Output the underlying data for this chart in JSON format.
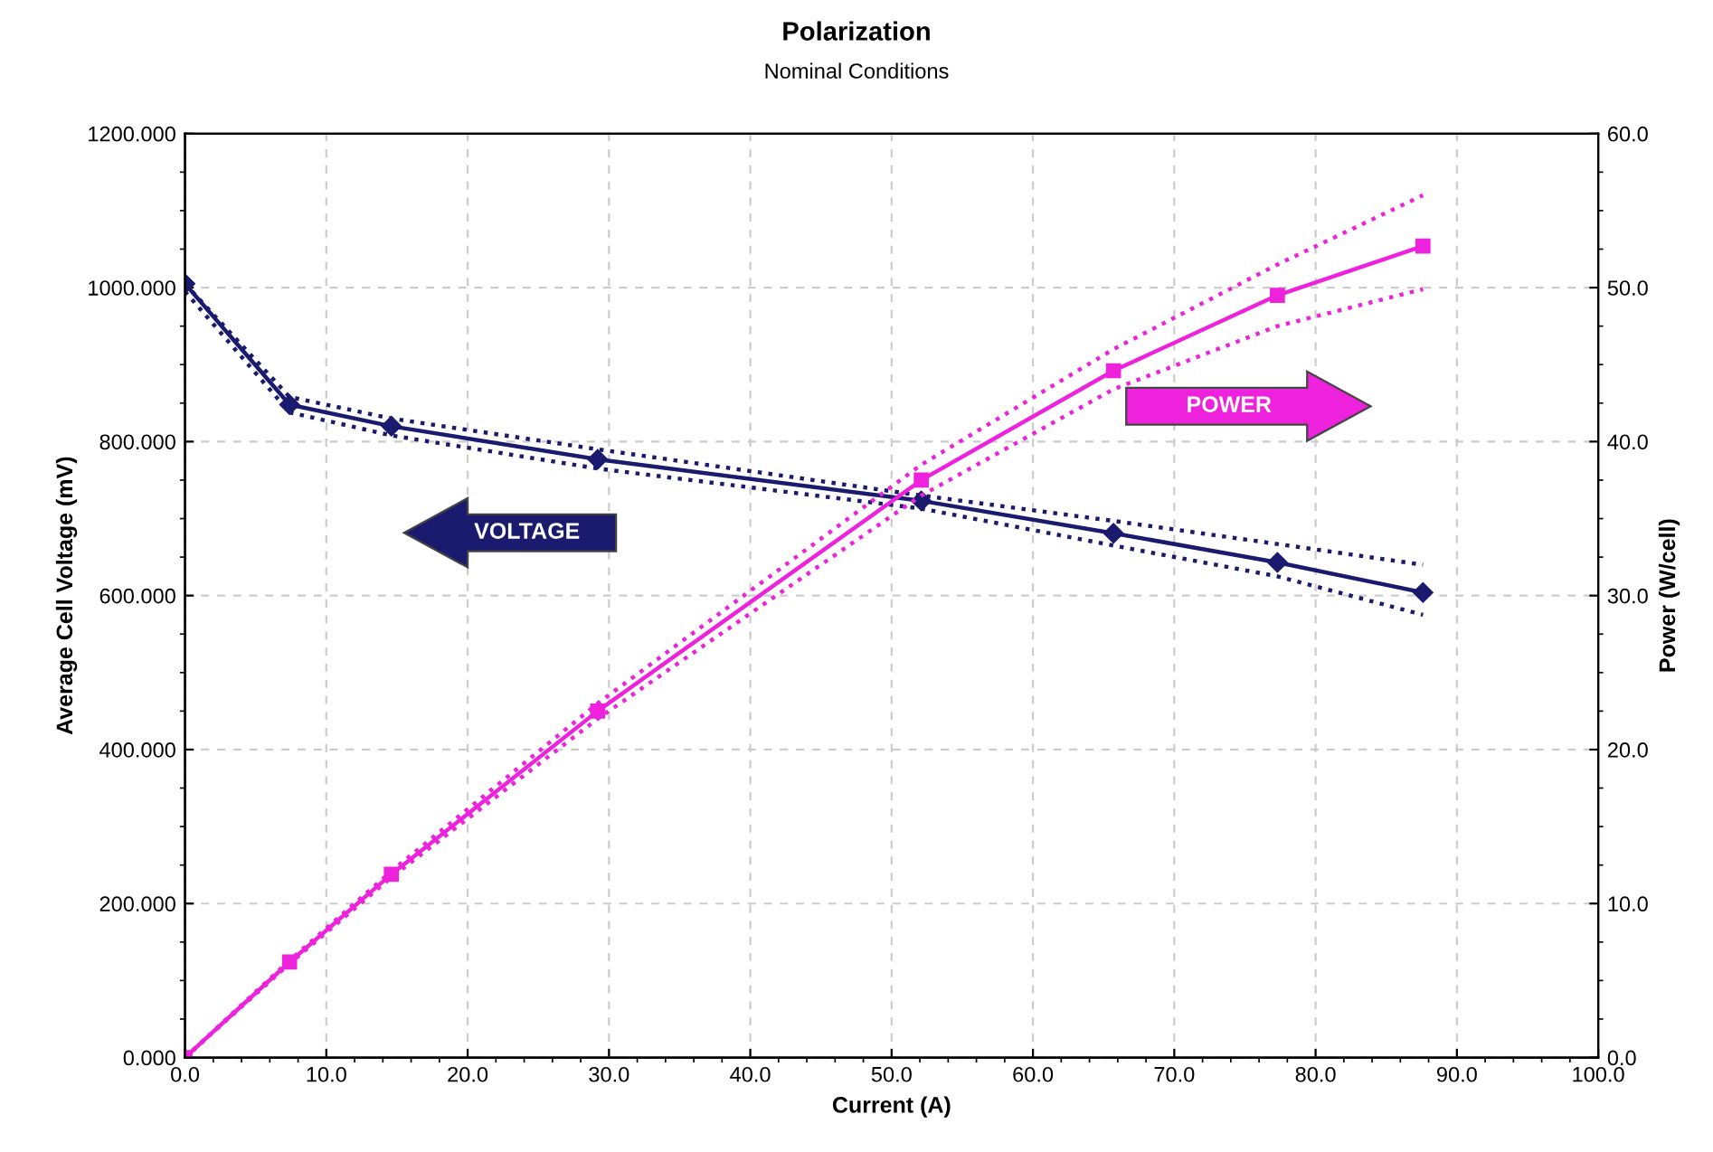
{
  "chart_data": {
    "type": "line",
    "title": "Polarization",
    "subtitle": "Nominal Conditions",
    "xlabel": "Current (A)",
    "ylabel": "Average Cell Voltage (mV)",
    "y2label": "Power (W/cell)",
    "xlim": [
      0,
      100
    ],
    "xticks": [
      {
        "value": 0,
        "label": "0.0"
      },
      {
        "value": 10,
        "label": "10.0"
      },
      {
        "value": 20,
        "label": "20.0"
      },
      {
        "value": 30,
        "label": "30.0"
      },
      {
        "value": 40,
        "label": "40.0"
      },
      {
        "value": 50,
        "label": "50.0"
      },
      {
        "value": 60,
        "label": "60.0"
      },
      {
        "value": 70,
        "label": "70.0"
      },
      {
        "value": 80,
        "label": "80.0"
      },
      {
        "value": 90,
        "label": "90.0"
      },
      {
        "value": 100,
        "label": "100.0"
      }
    ],
    "ylim": [
      0,
      1200
    ],
    "yticks": [
      {
        "value": 0,
        "label": "0.000"
      },
      {
        "value": 200,
        "label": "200.000"
      },
      {
        "value": 400,
        "label": "400.000"
      },
      {
        "value": 600,
        "label": "600.000"
      },
      {
        "value": 800,
        "label": "800.000"
      },
      {
        "value": 1000,
        "label": "1000.000"
      },
      {
        "value": 1200,
        "label": "1200.000"
      }
    ],
    "y2lim": [
      0,
      60
    ],
    "y2ticks": [
      {
        "value": 0,
        "label": "0.0"
      },
      {
        "value": 10,
        "label": "10.0"
      },
      {
        "value": 20,
        "label": "20.0"
      },
      {
        "value": 30,
        "label": "30.0"
      },
      {
        "value": 40,
        "label": "40.0"
      },
      {
        "value": 50,
        "label": "50.0"
      },
      {
        "value": 60,
        "label": "60.0"
      }
    ],
    "grid": true,
    "series": [
      {
        "name": "VOLTAGE",
        "color": "#1a1a6e",
        "marker": "diamond",
        "line_style": "solid",
        "x": [
          0,
          7.4,
          14.6,
          29.2,
          52.1,
          65.7,
          77.3,
          87.6
        ],
        "values": [
          1005,
          848,
          820,
          777,
          723,
          681,
          643,
          604
        ]
      },
      {
        "color": "#1a1a6e",
        "marker": "none",
        "line_style": "dotted",
        "x": [
          0,
          7.4,
          14.6,
          29.2,
          52.1,
          65.7,
          77.3,
          87.6
        ],
        "values": [
          1005,
          858,
          830,
          790,
          730,
          697,
          667,
          640
        ]
      },
      {
        "color": "#1a1a6e",
        "marker": "none",
        "line_style": "dotted",
        "x": [
          0,
          7.4,
          14.6,
          29.2,
          52.1,
          65.7,
          77.3,
          87.6
        ],
        "values": [
          995,
          838,
          808,
          765,
          713,
          665,
          625,
          575
        ]
      },
      {
        "name": "POWER",
        "color": "#ee22dd",
        "marker": "square",
        "line_style": "solid",
        "axis": "y2",
        "x": [
          0,
          7.4,
          14.6,
          29.2,
          52.1,
          65.7,
          77.3,
          87.6
        ],
        "values": [
          0,
          6.2,
          11.9,
          22.5,
          37.5,
          44.6,
          49.5,
          52.7
        ]
      },
      {
        "color": "#ee22dd",
        "marker": "none",
        "line_style": "dotted",
        "axis": "y2",
        "x": [
          0,
          7.4,
          14.6,
          29.2,
          52.1,
          65.7,
          77.3,
          87.6
        ],
        "values": [
          0,
          6.3,
          12.1,
          23.0,
          38.5,
          46.0,
          51.5,
          56.0
        ]
      },
      {
        "color": "#ee22dd",
        "marker": "none",
        "line_style": "dotted",
        "axis": "y2",
        "x": [
          0,
          7.4,
          14.6,
          29.2,
          52.1,
          65.7,
          77.3,
          87.6
        ],
        "values": [
          0,
          6.1,
          11.7,
          22.0,
          36.5,
          43.4,
          47.5,
          49.9
        ]
      }
    ]
  }
}
